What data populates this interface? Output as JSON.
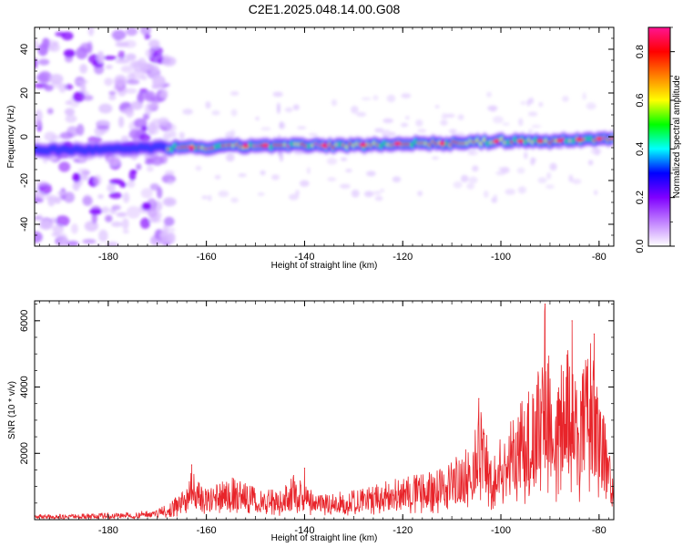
{
  "figure": {
    "title": "C2E1.2025.048.14.00.G08"
  },
  "colors": {
    "snr_line": "#e8242a",
    "axis": "#000000"
  },
  "chart_data": [
    {
      "type": "heatmap",
      "name": "spectrogram",
      "xlabel": "Height of straight line (km)",
      "ylabel": "Frequency (Hz)",
      "xlim": [
        -195,
        -77
      ],
      "ylim": [
        -50,
        50
      ],
      "xticks": [
        -180,
        -160,
        -140,
        -120,
        -100,
        -80
      ],
      "xtick_labels": [
        "-180",
        "-160",
        "-140",
        "-120",
        "-100",
        "-80"
      ],
      "yticks": [
        -40,
        -20,
        0,
        20,
        40
      ],
      "ytick_labels": [
        "-40",
        "-20",
        "0",
        "20",
        "40"
      ],
      "ridge": {
        "x": [
          -195,
          -180,
          -170,
          -160,
          -150,
          -140,
          -130,
          -120,
          -110,
          -100,
          -90,
          -80,
          -77
        ],
        "freq": [
          -6,
          -6,
          -5,
          -5,
          -4,
          -4,
          -4,
          -3,
          -3,
          -2,
          -2,
          -1,
          -1
        ]
      },
      "colorbar": {
        "label": "Normalized spectral amplitude",
        "range": [
          0,
          0.9
        ],
        "ticks": [
          0.0,
          0.2,
          0.4,
          0.6,
          0.8
        ],
        "tick_labels": [
          "0.0",
          "0.2",
          "0.4",
          "0.6",
          "0.8"
        ],
        "stops": [
          "#ffffff",
          "#c080ff",
          "#8000ff",
          "#0000ff",
          "#00ffff",
          "#00ff00",
          "#ffff00",
          "#ff8000",
          "#ff0000",
          "#ff1493"
        ]
      }
    },
    {
      "type": "line",
      "name": "snr",
      "xlabel": "Height of straight line (km)",
      "ylabel": "SNR (10 * v/v)",
      "xlim": [
        -195,
        -77
      ],
      "ylim": [
        0,
        6600
      ],
      "xticks": [
        -180,
        -160,
        -140,
        -120,
        -100,
        -80
      ],
      "xtick_labels": [
        "-180",
        "-160",
        "-140",
        "-120",
        "-100",
        "-80"
      ],
      "yticks": [
        2000,
        4000,
        6000
      ],
      "ytick_labels": [
        "2000",
        "4000",
        "6000"
      ],
      "envelope": {
        "x": [
          -195,
          -185,
          -175,
          -170,
          -165,
          -163,
          -160,
          -155,
          -150,
          -145,
          -141,
          -138,
          -135,
          -130,
          -125,
          -120,
          -115,
          -110,
          -106,
          -104,
          -102,
          -98,
          -95,
          -92,
          -91,
          -89,
          -87,
          -84,
          -82,
          -80,
          -78,
          -77
        ],
        "y": [
          150,
          180,
          220,
          350,
          800,
          1550,
          900,
          1300,
          1000,
          900,
          1550,
          700,
          800,
          900,
          1100,
          1300,
          1400,
          1800,
          2300,
          3600,
          2000,
          3000,
          3800,
          4800,
          6500,
          3500,
          5500,
          4000,
          5700,
          3800,
          2500,
          1300
        ]
      },
      "peaks": [
        {
          "x": -163,
          "y": 1650
        },
        {
          "x": -140,
          "y": 1550
        },
        {
          "x": -104.5,
          "y": 3650
        },
        {
          "x": -91,
          "y": 6500
        },
        {
          "x": -85.5,
          "y": 6000
        },
        {
          "x": -81,
          "y": 5600
        }
      ]
    }
  ]
}
